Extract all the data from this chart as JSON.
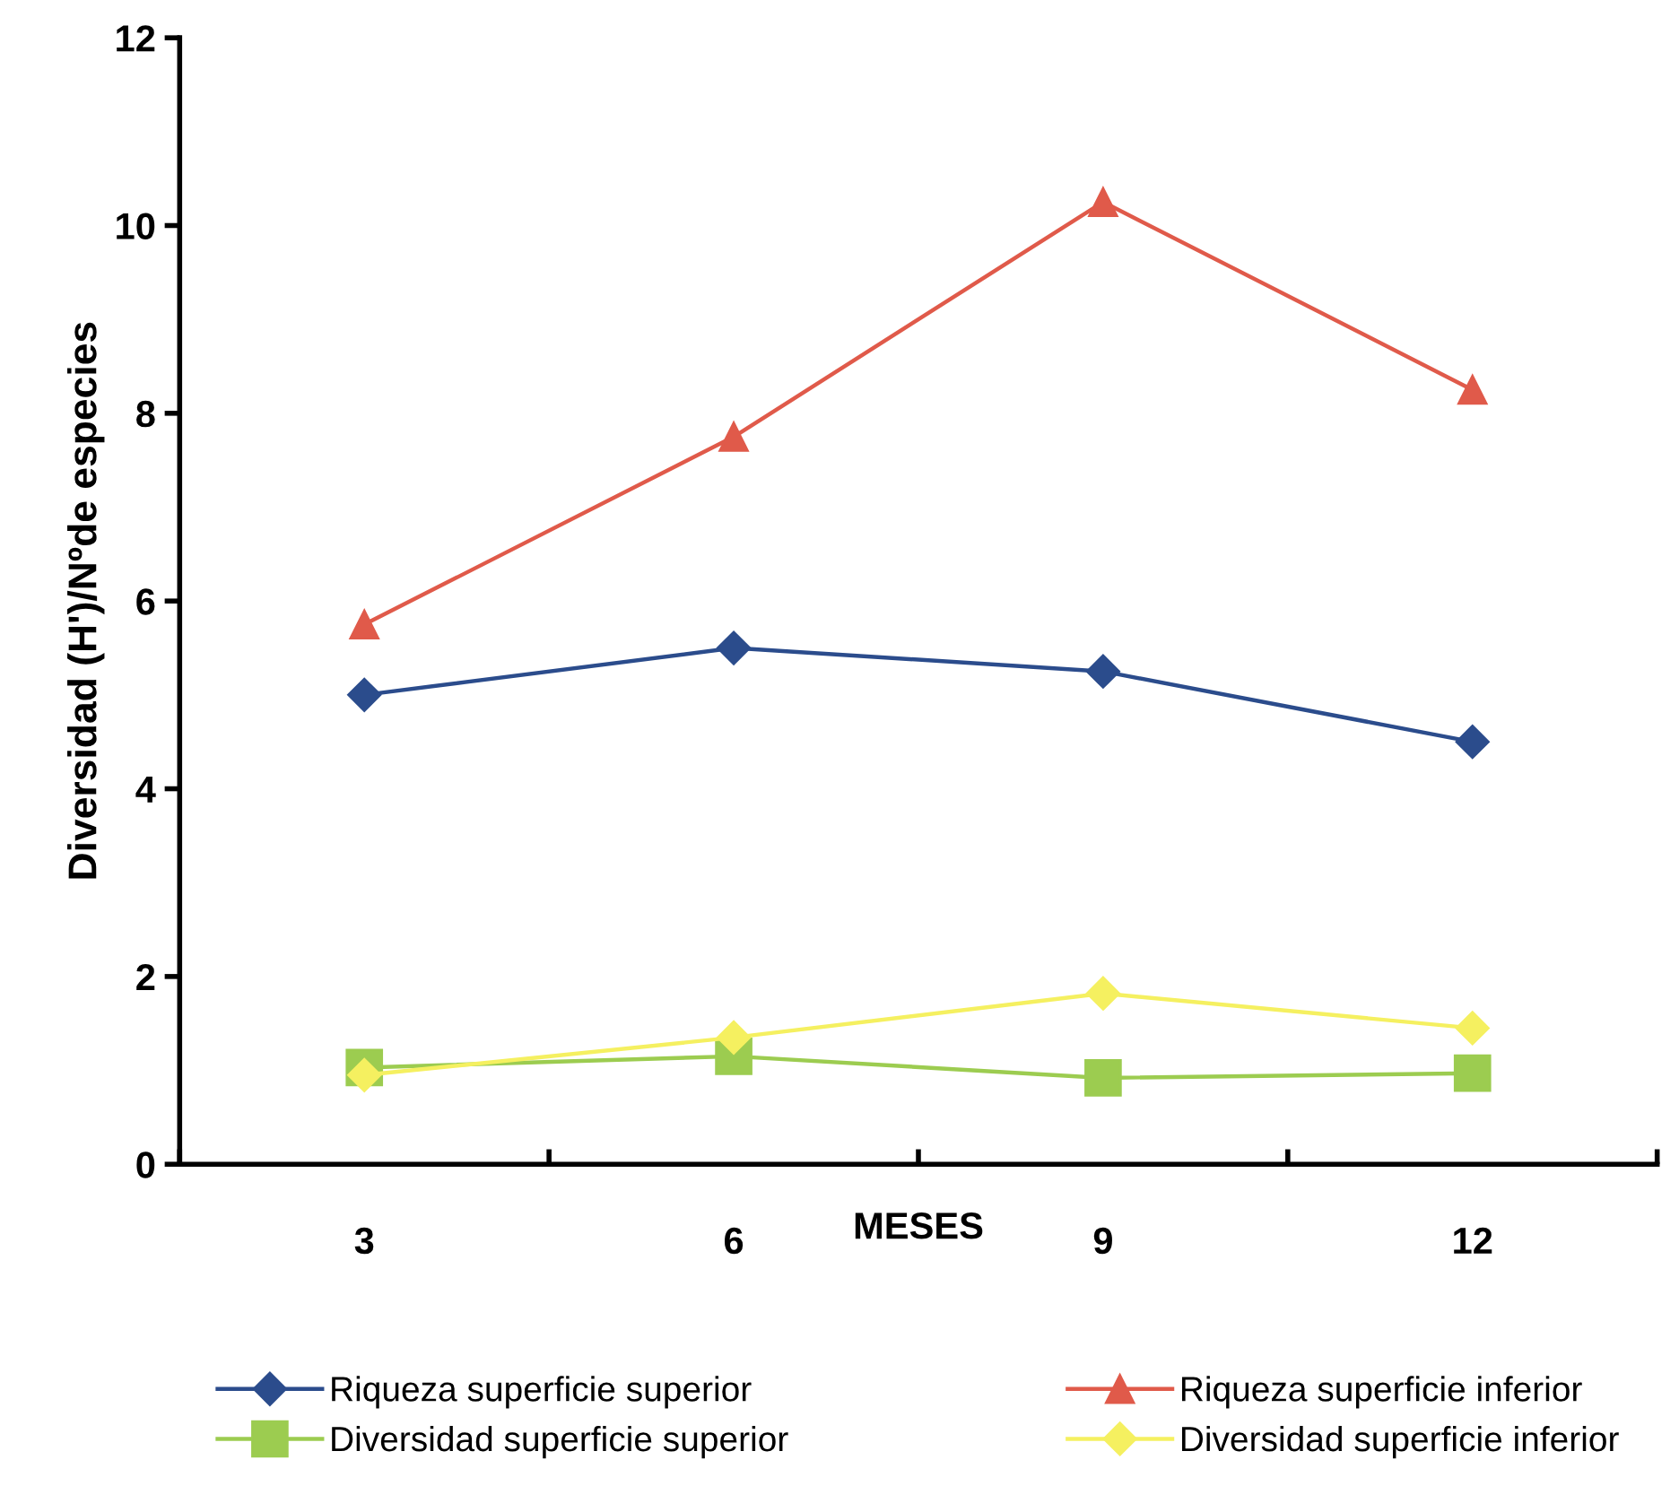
{
  "chart_data": {
    "type": "line",
    "xlabel": "MESES",
    "ylabel": "Diversidad (H')/Nºde especies",
    "categories": [
      "3",
      "6",
      "9",
      "12"
    ],
    "ylim": [
      0,
      12
    ],
    "yticks": [
      0,
      2,
      4,
      6,
      8,
      10,
      12
    ],
    "grid": false,
    "legend": "bottom",
    "series": [
      {
        "name": "Riqueza superficie superior",
        "color": "#2b4c8c",
        "marker": "diamond",
        "values": [
          5.0,
          5.5,
          5.25,
          4.5
        ]
      },
      {
        "name": "Diversidad superficie superior",
        "color": "#9ccc50",
        "marker": "square",
        "values": [
          1.03,
          1.15,
          0.92,
          0.97
        ]
      },
      {
        "name": "Riqueza superficie inferior",
        "color": "#e05a4a",
        "marker": "triangle",
        "values": [
          5.75,
          7.75,
          10.25,
          8.25
        ]
      },
      {
        "name": "Diversidad superficie inferior",
        "color": "#f5f060",
        "marker": "diamond",
        "values": [
          0.95,
          1.35,
          1.82,
          1.45
        ]
      }
    ]
  }
}
